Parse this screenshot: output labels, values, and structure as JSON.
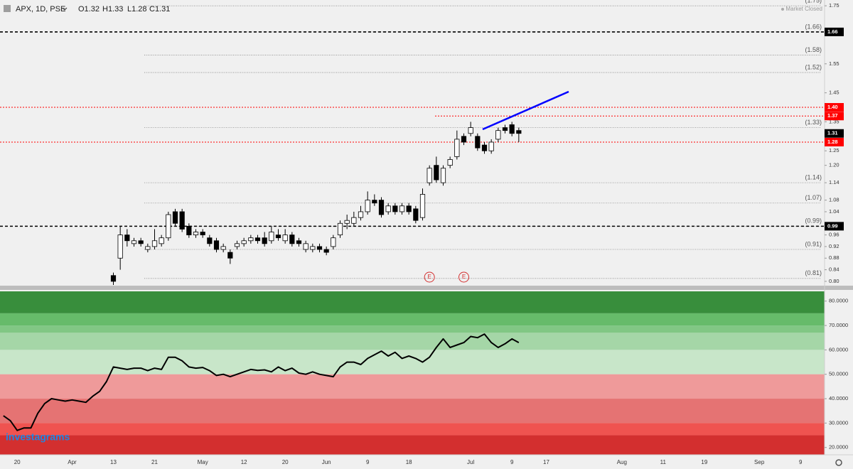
{
  "header": {
    "symbol": "APX, 1D, PSE",
    "open": "O1.32",
    "high": "H1.33",
    "low": "L1.28",
    "close": "C1.31",
    "status": "Market Closed",
    "logo": "investagrams"
  },
  "events": [
    "E",
    "E"
  ],
  "chart_data": [
    {
      "type": "candlestick",
      "categories": [
        null,
        null,
        "20",
        null,
        null,
        null,
        null,
        null,
        null,
        null,
        "Apr",
        null,
        null,
        null,
        null,
        null,
        "13",
        null,
        null,
        null,
        null,
        null,
        "21",
        null,
        null,
        null,
        null,
        null,
        null,
        "May",
        null,
        null,
        null,
        null,
        null,
        "12",
        null,
        null,
        null,
        null,
        null,
        "20",
        null,
        null,
        null,
        null,
        null,
        "Jun",
        null,
        null,
        null,
        null,
        null,
        "9",
        null,
        null,
        null,
        null,
        null,
        "18",
        null,
        null,
        null,
        null,
        null,
        null,
        null,
        null,
        "Jul",
        null,
        null,
        null,
        null,
        null,
        "9",
        null,
        null,
        null,
        null,
        "17",
        null,
        null,
        null,
        null,
        null,
        null,
        null,
        null,
        null,
        null,
        "Aug",
        null,
        null,
        null,
        null,
        null,
        "11",
        null,
        null,
        null,
        null,
        null,
        "19",
        null,
        null,
        null,
        null,
        null,
        null,
        null,
        "Sep",
        null,
        null,
        null,
        null,
        null,
        "9",
        null,
        null,
        null
      ],
      "open": [
        null,
        null,
        null,
        null,
        null,
        null,
        null,
        null,
        null,
        null,
        null,
        null,
        null,
        null,
        null,
        null,
        0.82,
        0.88,
        0.96,
        0.93,
        0.94,
        0.91,
        0.92,
        0.93,
        0.95,
        1.04,
        1.04,
        0.99,
        0.96,
        0.97,
        0.95,
        0.94,
        0.91,
        0.9,
        0.92,
        0.93,
        0.94,
        0.95,
        0.95,
        0.94,
        0.96,
        0.94,
        0.96,
        0.94,
        0.91,
        0.91,
        0.92,
        0.91,
        0.92,
        0.96,
        1.0,
        1.0,
        1.02,
        1.04,
        1.08,
        1.08,
        1.04,
        1.06,
        1.04,
        1.06,
        1.05,
        1.02,
        1.14,
        1.2,
        1.14,
        1.2,
        1.23,
        1.3,
        1.31,
        1.3,
        1.27,
        1.25,
        1.29,
        1.33,
        1.34,
        1.32,
        null,
        null,
        null,
        null,
        null,
        null,
        null,
        null,
        null,
        null,
        null,
        null,
        null,
        null,
        null,
        null,
        null,
        null,
        null,
        null,
        null,
        null,
        null,
        null,
        null,
        null,
        null,
        null,
        null,
        null,
        null,
        null,
        null,
        null,
        null,
        null,
        null,
        null,
        null,
        null,
        null,
        null,
        null,
        null
      ],
      "high": [
        null,
        null,
        null,
        null,
        null,
        null,
        null,
        null,
        null,
        null,
        null,
        null,
        null,
        null,
        null,
        null,
        0.83,
        0.99,
        0.98,
        0.95,
        0.95,
        0.93,
        0.98,
        0.96,
        1.04,
        1.05,
        1.05,
        1.0,
        0.98,
        0.98,
        0.96,
        0.95,
        0.93,
        0.91,
        0.94,
        0.95,
        0.96,
        0.96,
        0.97,
        0.99,
        0.98,
        0.98,
        0.97,
        0.95,
        0.94,
        0.93,
        0.93,
        0.92,
        0.96,
        1.01,
        1.03,
        1.04,
        1.06,
        1.11,
        1.1,
        1.09,
        1.07,
        1.07,
        1.07,
        1.07,
        1.06,
        1.12,
        1.2,
        1.23,
        1.2,
        1.23,
        1.32,
        1.31,
        1.35,
        1.31,
        1.28,
        1.29,
        1.33,
        1.34,
        1.35,
        1.33,
        null,
        null,
        null,
        null,
        null,
        null,
        null,
        null,
        null,
        null,
        null,
        null,
        null,
        null,
        null,
        null,
        null,
        null,
        null,
        null,
        null,
        null,
        null,
        null,
        null,
        null,
        null,
        null,
        null,
        null,
        null,
        null,
        null,
        null,
        null,
        null,
        null,
        null,
        null,
        null,
        null,
        null,
        null,
        null
      ],
      "low": [
        null,
        null,
        null,
        null,
        null,
        null,
        null,
        null,
        null,
        null,
        null,
        null,
        null,
        null,
        null,
        null,
        0.78,
        0.84,
        0.92,
        0.92,
        0.92,
        0.9,
        0.91,
        0.92,
        0.94,
        0.99,
        0.97,
        0.95,
        0.95,
        0.95,
        0.92,
        0.9,
        0.9,
        0.86,
        0.91,
        0.92,
        0.93,
        0.93,
        0.92,
        0.93,
        0.94,
        0.93,
        0.92,
        0.92,
        0.9,
        0.9,
        0.9,
        0.89,
        0.91,
        0.95,
        0.98,
        0.99,
        1.01,
        1.03,
        1.06,
        1.02,
        1.03,
        1.03,
        1.03,
        1.03,
        1.0,
        1.01,
        1.13,
        1.14,
        1.13,
        1.19,
        1.22,
        1.27,
        1.3,
        1.25,
        1.24,
        1.24,
        1.28,
        1.31,
        1.3,
        1.28,
        null,
        null,
        null,
        null,
        null,
        null,
        null,
        null,
        null,
        null,
        null,
        null,
        null,
        null,
        null,
        null,
        null,
        null,
        null,
        null,
        null,
        null,
        null,
        null,
        null,
        null,
        null,
        null,
        null,
        null,
        null,
        null,
        null,
        null,
        null,
        null,
        null,
        null,
        null,
        null,
        null,
        null,
        null,
        null
      ],
      "close": [
        null,
        null,
        null,
        null,
        null,
        null,
        null,
        null,
        null,
        null,
        null,
        null,
        null,
        null,
        null,
        null,
        0.8,
        0.96,
        0.94,
        0.94,
        0.93,
        0.92,
        0.94,
        0.95,
        1.03,
        1.0,
        0.98,
        0.96,
        0.97,
        0.96,
        0.93,
        0.91,
        0.92,
        0.88,
        0.93,
        0.94,
        0.95,
        0.94,
        0.93,
        0.97,
        0.95,
        0.96,
        0.93,
        0.93,
        0.93,
        0.92,
        0.91,
        0.9,
        0.95,
        1.0,
        1.01,
        1.02,
        1.04,
        1.08,
        1.07,
        1.03,
        1.06,
        1.04,
        1.06,
        1.04,
        1.01,
        1.1,
        1.19,
        1.15,
        1.19,
        1.22,
        1.29,
        1.28,
        1.33,
        1.26,
        1.25,
        1.28,
        1.32,
        1.32,
        1.31,
        1.31,
        null,
        null,
        null,
        null,
        null,
        null,
        null,
        null,
        null,
        null,
        null,
        null,
        null,
        null,
        null,
        null,
        null,
        null,
        null,
        null,
        null,
        null,
        null,
        null,
        null,
        null,
        null,
        null,
        null,
        null,
        null,
        null,
        null,
        null,
        null,
        null,
        null,
        null,
        null,
        null,
        null,
        null,
        null,
        null
      ],
      "up_color": "#ffffff",
      "down_color": "#000000",
      "ylim": [
        0.79,
        1.77
      ],
      "yticks": [
        1.75,
        1.55,
        1.45,
        1.35,
        1.25,
        {
          "value": 1.2,
          "label": "1.20"
        },
        1.14,
        1.08,
        1.04,
        0.96,
        0.92,
        0.88,
        0.84,
        {
          "value": 0.8,
          "label": "0.80"
        }
      ],
      "levels": [
        {
          "value": 1.75,
          "label": "(1.75)"
        },
        {
          "value": 1.66,
          "label": "(1.66)"
        },
        {
          "value": 1.58,
          "label": "(1.58)"
        },
        {
          "value": 1.52,
          "label": "(1.52)"
        },
        {
          "value": 1.33,
          "label": "(1.33)"
        },
        {
          "value": 1.14,
          "label": "(1.14)"
        },
        {
          "value": 1.07,
          "label": "(1.07)"
        },
        {
          "value": 0.99,
          "label": "(0.99)"
        },
        {
          "value": 0.91,
          "label": "(0.91)"
        },
        {
          "value": 0.81,
          "label": "(0.81)"
        }
      ],
      "price_lines": [
        {
          "value": 1.66,
          "label": "1.66",
          "color": "#000000",
          "style": "dashed"
        },
        {
          "value": 1.4,
          "label": "1.40",
          "color": "#ff0000",
          "style": "dotted"
        },
        {
          "value": 1.37,
          "label": "1.37",
          "color": "#ff0000",
          "style": "dotted"
        },
        {
          "value": 1.31,
          "label": "1.31",
          "color": "#000000",
          "style": "none"
        },
        {
          "value": 1.28,
          "label": "1.28",
          "color": "#ff0000",
          "style": "dotted"
        },
        {
          "value": 0.99,
          "label": "0.99",
          "color": "#000000",
          "style": "dashed"
        }
      ]
    },
    {
      "type": "line",
      "color": "#000000",
      "values": [
        33,
        31,
        27,
        28,
        28,
        34,
        38,
        40,
        39.5,
        39,
        39.5,
        39,
        38.5,
        41,
        43,
        47,
        53,
        52.5,
        52,
        52.5,
        52.5,
        51.5,
        52.5,
        52,
        57,
        57,
        55.5,
        53,
        52.5,
        52.8,
        51.5,
        49.5,
        50,
        49,
        50,
        51,
        52,
        51.6,
        51.8,
        51,
        53,
        51.5,
        52.5,
        50.5,
        50,
        51,
        50,
        49.5,
        49,
        53,
        55,
        55,
        54,
        56.5,
        58,
        59.5,
        57.5,
        59,
        56.5,
        57.5,
        56.5,
        55,
        57,
        61,
        64.5,
        61,
        62,
        63,
        65.5,
        65,
        66.5,
        63,
        61,
        62.5,
        64.5,
        63,
        null,
        null,
        null,
        null,
        null,
        null,
        null,
        null,
        null,
        null,
        null,
        null,
        null,
        null,
        null,
        null,
        null,
        null,
        null,
        null,
        null,
        null,
        null,
        null,
        null,
        null,
        null,
        null,
        null,
        null,
        null,
        null,
        null,
        null,
        null,
        null,
        null,
        null,
        null,
        null,
        null,
        null,
        null,
        null
      ],
      "ylim": [
        17,
        84
      ],
      "yticks": [
        {
          "value": 80,
          "label": "80.0000"
        },
        {
          "value": 70,
          "label": "70.0000"
        },
        {
          "value": 60,
          "label": "60.0000"
        },
        {
          "value": 50,
          "label": "50.0000"
        },
        {
          "value": 40,
          "label": "40.0000"
        },
        {
          "value": 30,
          "label": "30.0000"
        },
        {
          "value": 20,
          "label": "20.0000"
        }
      ],
      "bands": [
        {
          "from": 75,
          "to": 84,
          "color": "#388e3c"
        },
        {
          "from": 70,
          "to": 75,
          "color": "#66bb6a"
        },
        {
          "from": 67,
          "to": 70,
          "color": "#81c784"
        },
        {
          "from": 60,
          "to": 67,
          "color": "#a5d6a7"
        },
        {
          "from": 50,
          "to": 60,
          "color": "#c8e6c9"
        },
        {
          "from": 40,
          "to": 50,
          "color": "#ef9a9a"
        },
        {
          "from": 30,
          "to": 40,
          "color": "#e57373"
        },
        {
          "from": 25,
          "to": 30,
          "color": "#ef5350"
        },
        {
          "from": 17,
          "to": 25,
          "color": "#d32f2f"
        }
      ]
    }
  ]
}
